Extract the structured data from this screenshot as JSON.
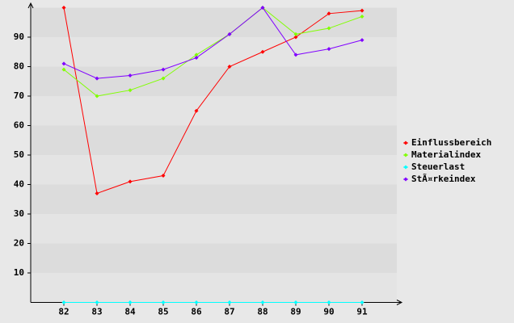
{
  "chart_data": {
    "type": "line",
    "categories": [
      "82",
      "83",
      "84",
      "85",
      "86",
      "87",
      "88",
      "89",
      "90",
      "91"
    ],
    "series": [
      {
        "name": "Einflussbereich",
        "color": "#ff0000",
        "values": [
          100,
          37,
          41,
          43,
          65,
          80,
          85,
          90,
          98,
          99
        ]
      },
      {
        "name": "Materialindex",
        "color": "#80ff00",
        "values": [
          79,
          70,
          72,
          76,
          84,
          91,
          100,
          91,
          93,
          97
        ]
      },
      {
        "name": "Steuerlast",
        "color": "#00ffff",
        "values": [
          0,
          0,
          0,
          0,
          0,
          0,
          0,
          0,
          0,
          0
        ]
      },
      {
        "name": "StÃ¤rkeindex",
        "color": "#8000ff",
        "values": [
          81,
          76,
          77,
          79,
          83,
          91,
          100,
          84,
          86,
          89
        ]
      }
    ],
    "ylim": [
      0,
      100
    ],
    "yticks": [
      10,
      20,
      30,
      40,
      50,
      60,
      70,
      80,
      90
    ],
    "grid": true,
    "legend": "right"
  }
}
